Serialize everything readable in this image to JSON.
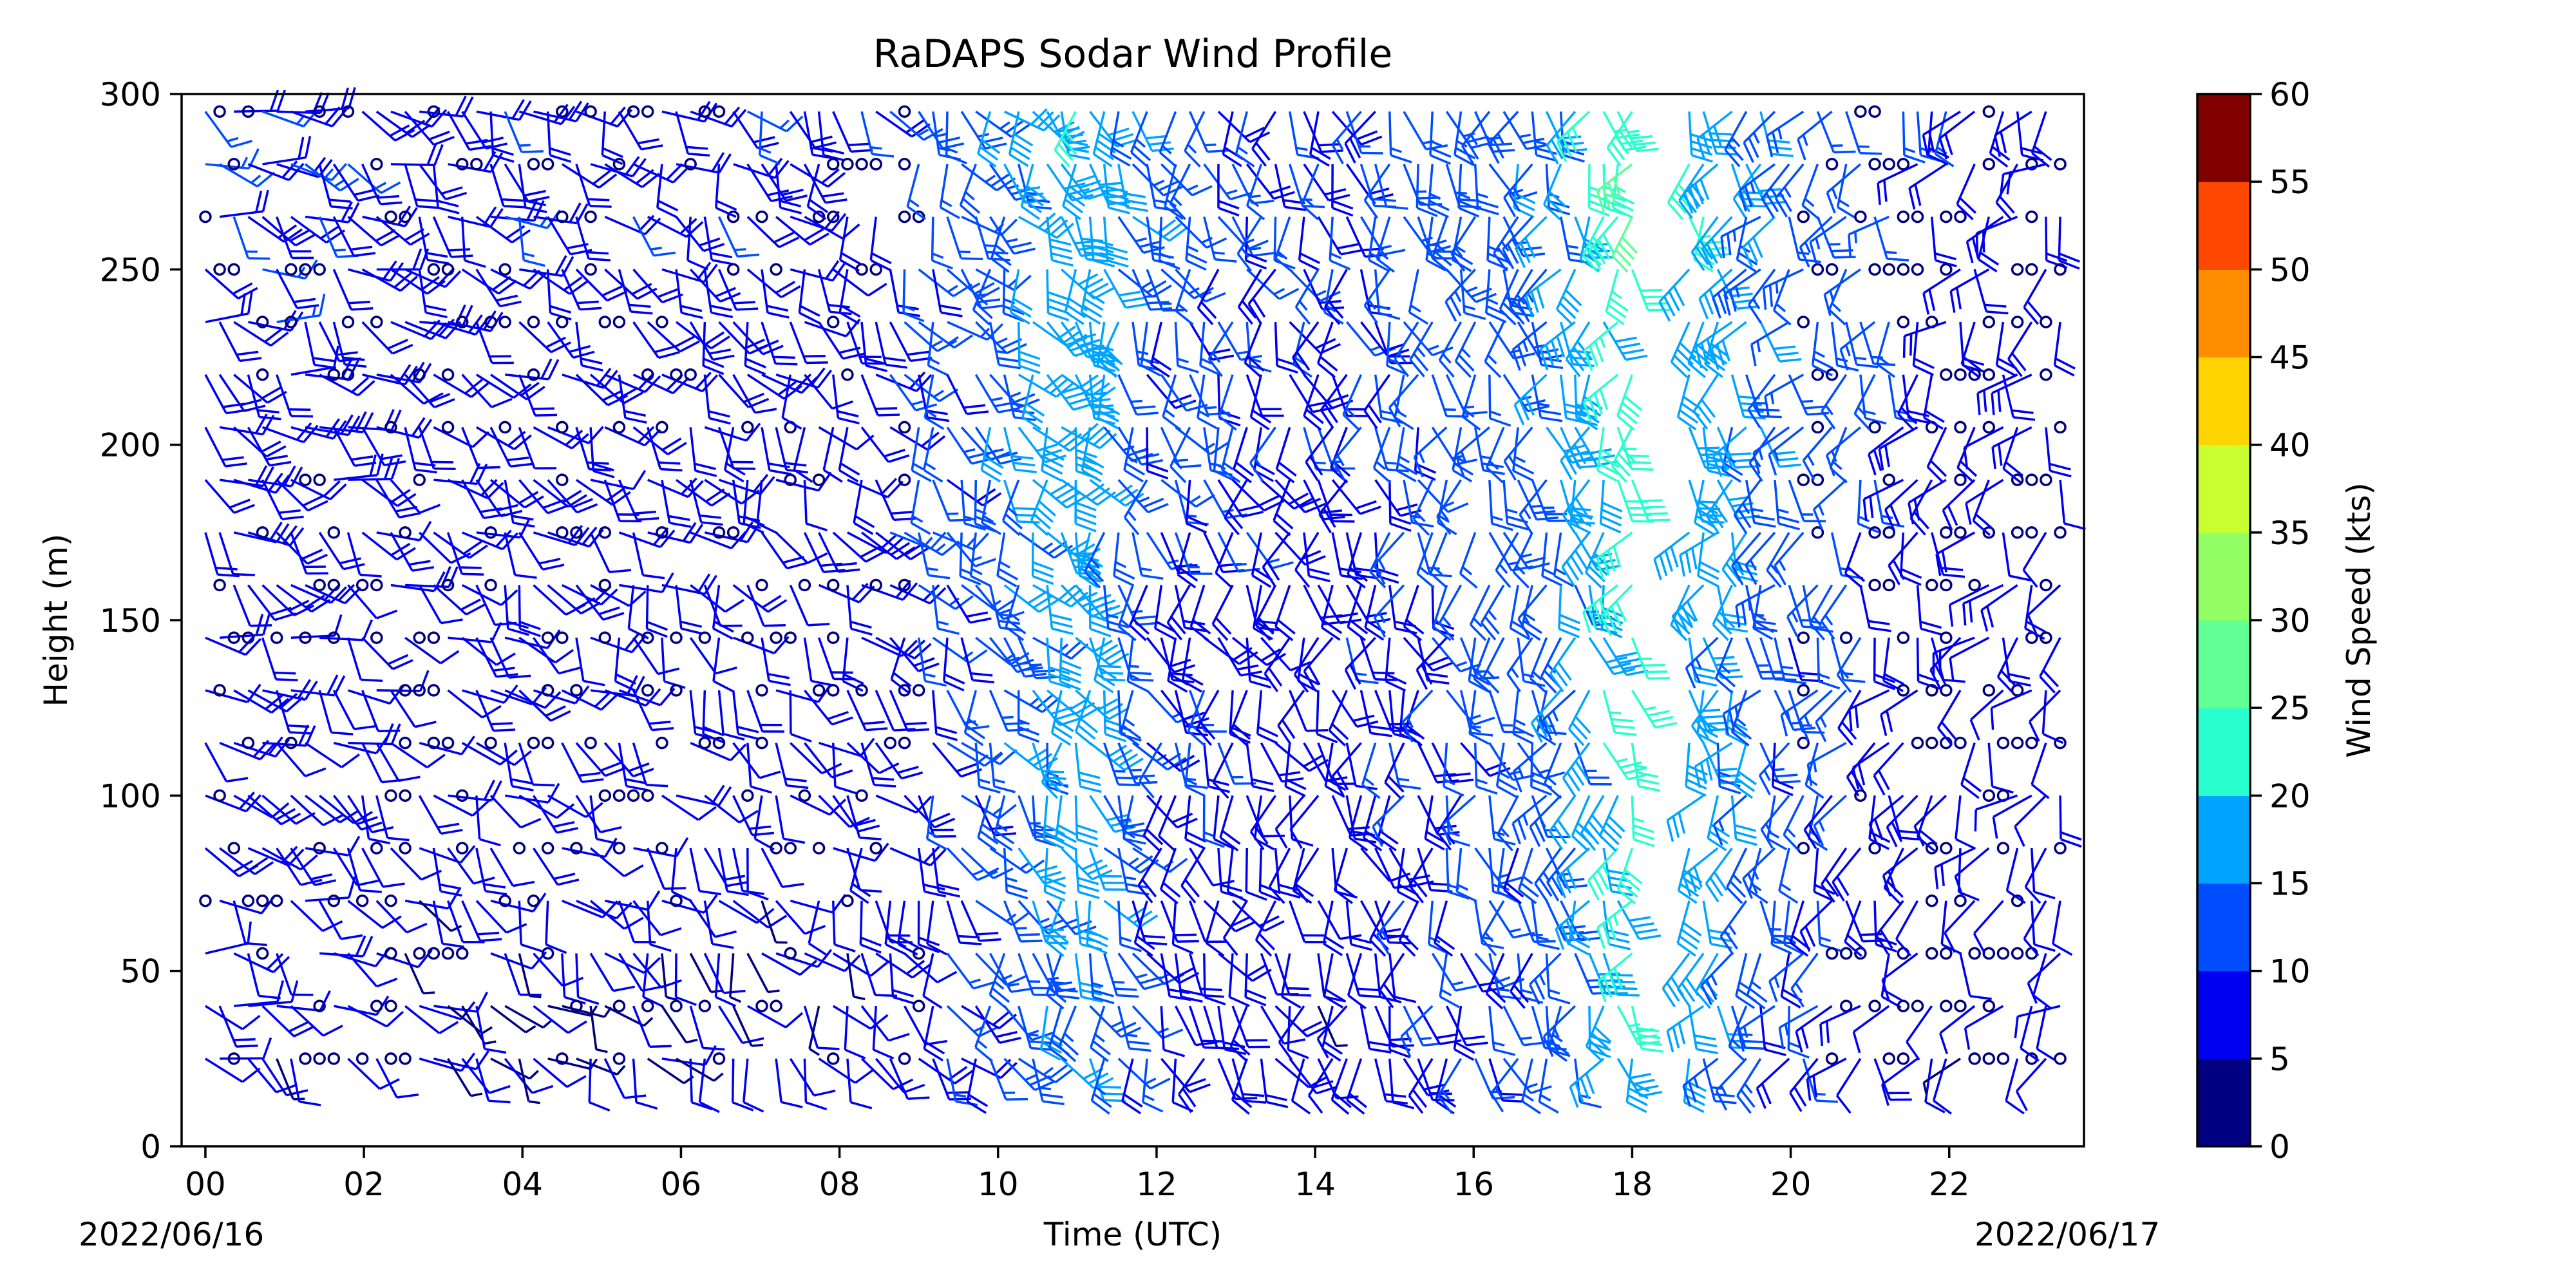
{
  "chart_data": {
    "type": "wind-barb profile",
    "title": "RaDAPS Sodar Wind Profile",
    "xlabel": "Time (UTC)",
    "ylabel": "Height (m)",
    "start_date": "2022/06/16",
    "end_date": "2022/06/17",
    "x_unit": "hour UTC",
    "xlim": [
      -0.3,
      23.7
    ],
    "ylim": [
      0,
      300
    ],
    "x_ticks": [
      "00",
      "02",
      "04",
      "06",
      "08",
      "10",
      "12",
      "14",
      "16",
      "18",
      "20",
      "22"
    ],
    "y_ticks": [
      "0",
      "50",
      "100",
      "150",
      "200",
      "250",
      "300"
    ],
    "height_levels_m": [
      25,
      40,
      55,
      70,
      85,
      100,
      115,
      130,
      145,
      160,
      175,
      190,
      205,
      220,
      235,
      250,
      265,
      280,
      295
    ],
    "colorbar": {
      "label": "Wind Speed (kts)",
      "bounds": [
        0,
        5,
        10,
        15,
        20,
        25,
        30,
        35,
        40,
        45,
        50,
        55,
        60
      ],
      "tick_labels": [
        "0",
        "5",
        "10",
        "15",
        "20",
        "25",
        "30",
        "35",
        "40",
        "45",
        "50",
        "55",
        "60"
      ],
      "colors": [
        "#000080",
        "#0000f1",
        "#004dff",
        "#00a4ff",
        "#29ffce",
        "#61ff96",
        "#93ff64",
        "#c8ff30",
        "#ffd400",
        "#ff8d00",
        "#ff4800",
        "#ee0000",
        "#800000"
      ]
    },
    "calm_marker": "open circle",
    "speed_by_hour_kts": [
      [
        0,
        6
      ],
      [
        2,
        5
      ],
      [
        4,
        5
      ],
      [
        6,
        5
      ],
      [
        8,
        5
      ],
      [
        9.5,
        9
      ],
      [
        10,
        12
      ],
      [
        11,
        16
      ],
      [
        12,
        8
      ],
      [
        14,
        6
      ],
      [
        16,
        10
      ],
      [
        17,
        11
      ],
      [
        18,
        21
      ],
      [
        19,
        15
      ],
      [
        20,
        9
      ],
      [
        22,
        5
      ]
    ],
    "grid": false
  }
}
